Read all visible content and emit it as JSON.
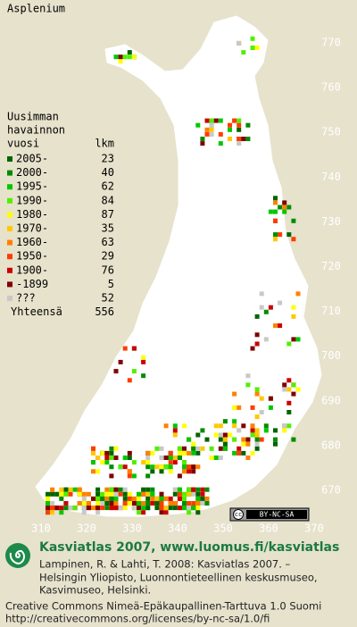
{
  "title": "Asplenium",
  "legend": {
    "heading": [
      "Uusimman",
      "havainnon"
    ],
    "year_header": "vuosi",
    "count_header": "lkm",
    "rows": [
      {
        "label": "2005-",
        "count": 23,
        "color": "#006400"
      },
      {
        "label": "2000-",
        "count": 40,
        "color": "#008c00"
      },
      {
        "label": "1995-",
        "count": 62,
        "color": "#00c800"
      },
      {
        "label": "1990-",
        "count": 84,
        "color": "#50f000"
      },
      {
        "label": "1980-",
        "count": 87,
        "color": "#ffff00"
      },
      {
        "label": "1970-",
        "count": 35,
        "color": "#ffc800"
      },
      {
        "label": "1960-",
        "count": 63,
        "color": "#ff8000"
      },
      {
        "label": "1950-",
        "count": 29,
        "color": "#ff3c00"
      },
      {
        "label": "1900-",
        "count": 76,
        "color": "#cc0000"
      },
      {
        "label": "-1899",
        "count": 5,
        "color": "#800000"
      },
      {
        "label": "???",
        "count": 52,
        "color": "#c8c8c8"
      }
    ],
    "total_label": "Yhteensä",
    "total": 556
  },
  "y_grid_labels": [
    770,
    760,
    750,
    740,
    730,
    720,
    710,
    700,
    690,
    680,
    670
  ],
  "x_grid_labels": [
    310,
    320,
    330,
    340,
    350,
    360,
    370
  ],
  "license_badge": {
    "cc": "cc",
    "text": "BY-NC-SA"
  },
  "footer": {
    "site": "Kasviatlas 2007, www.luomus.fi/kasviatlas",
    "citation": [
      "Lampinen, R. & Lahti, T. 2008: Kasviatlas 2007. –",
      "Helsingin Yliopisto, Luonnontieteellinen keskusmuseo,",
      "Kasvimuseo, Helsinki."
    ],
    "license": [
      "Creative Commons Nimeä-Epäkaupallinen-Tarttuva 1.0 Suomi",
      "http://creativecommons.org/licenses/by-nc-sa/1.0/fi"
    ]
  }
}
